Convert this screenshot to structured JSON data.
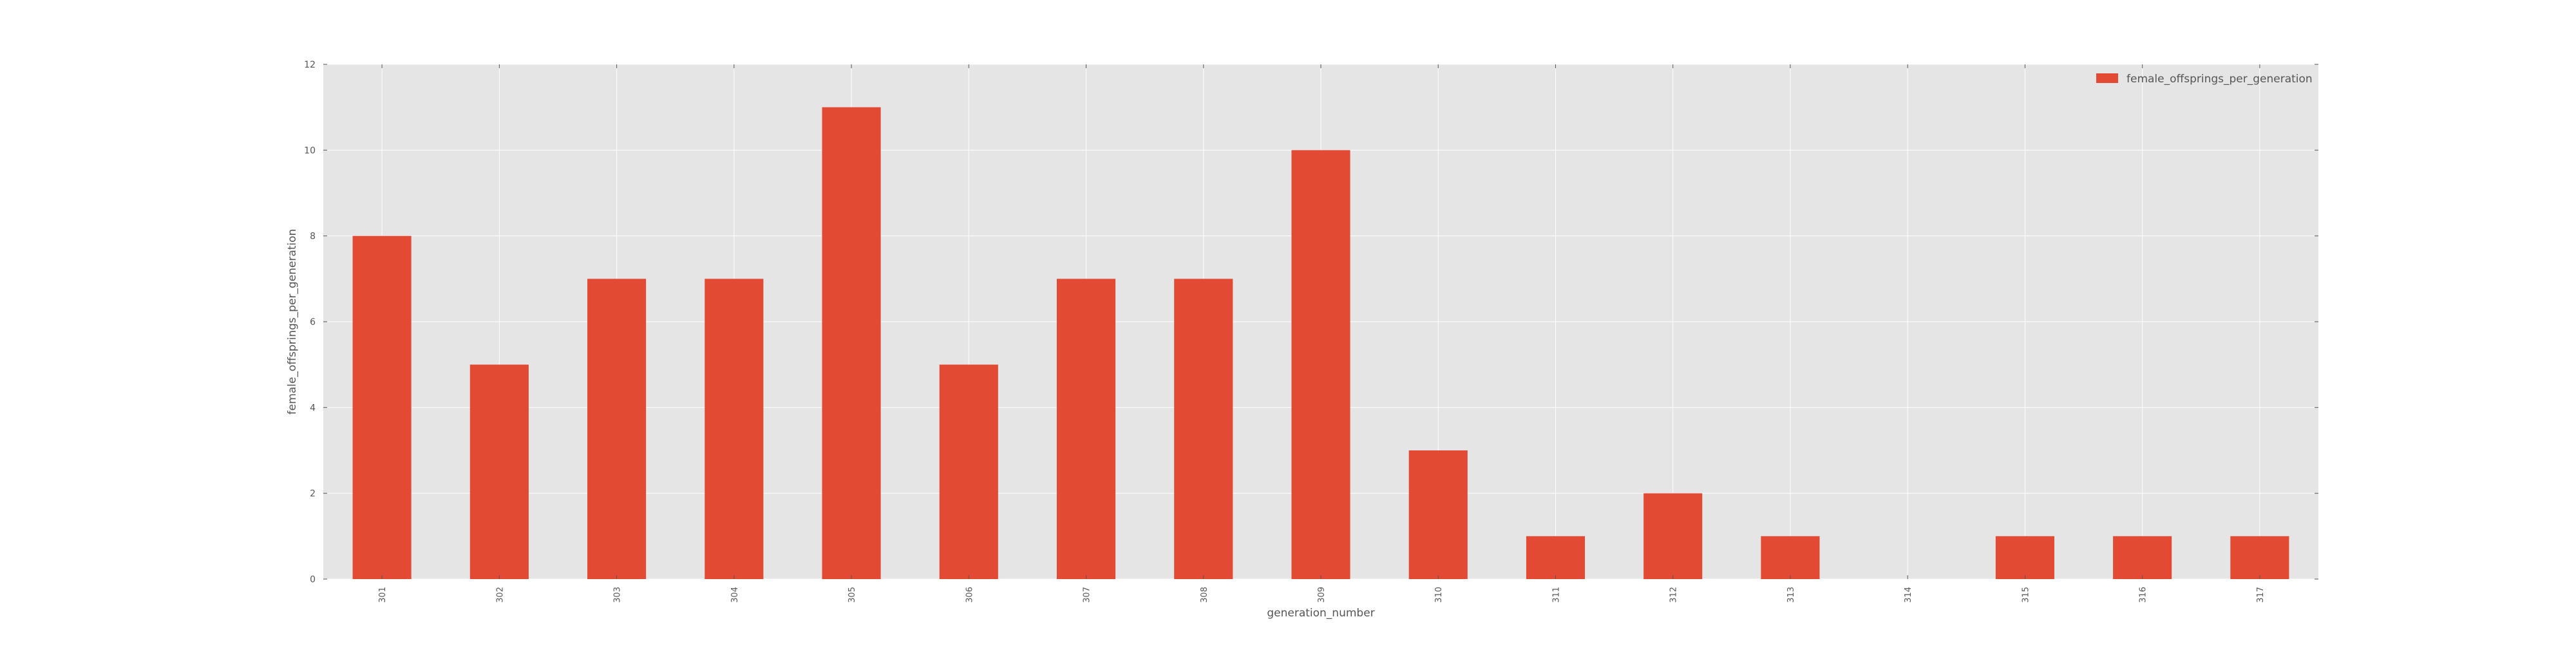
{
  "chart_data": {
    "type": "bar",
    "xlabel": "generation_number",
    "ylabel": "female_offsprings_per_generation",
    "categories": [
      "301",
      "302",
      "303",
      "304",
      "305",
      "306",
      "307",
      "308",
      "309",
      "310",
      "311",
      "312",
      "313",
      "314",
      "315",
      "316",
      "317"
    ],
    "series": [
      {
        "name": "female_offsprings_per_generation",
        "values": [
          8,
          5,
          7,
          7,
          11,
          5,
          7,
          7,
          10,
          3,
          1,
          2,
          1,
          0,
          1,
          1,
          1
        ],
        "color": "#e24a33"
      }
    ],
    "ylim": [
      0,
      12
    ],
    "yticks": [
      0,
      2,
      4,
      6,
      8,
      10,
      12
    ],
    "grid": true,
    "legend_position": "top-right",
    "colors": {
      "plot_background": "#e5e5e5",
      "grid": "#ffffff",
      "bar": "#e24a33",
      "text": "#555555"
    }
  }
}
